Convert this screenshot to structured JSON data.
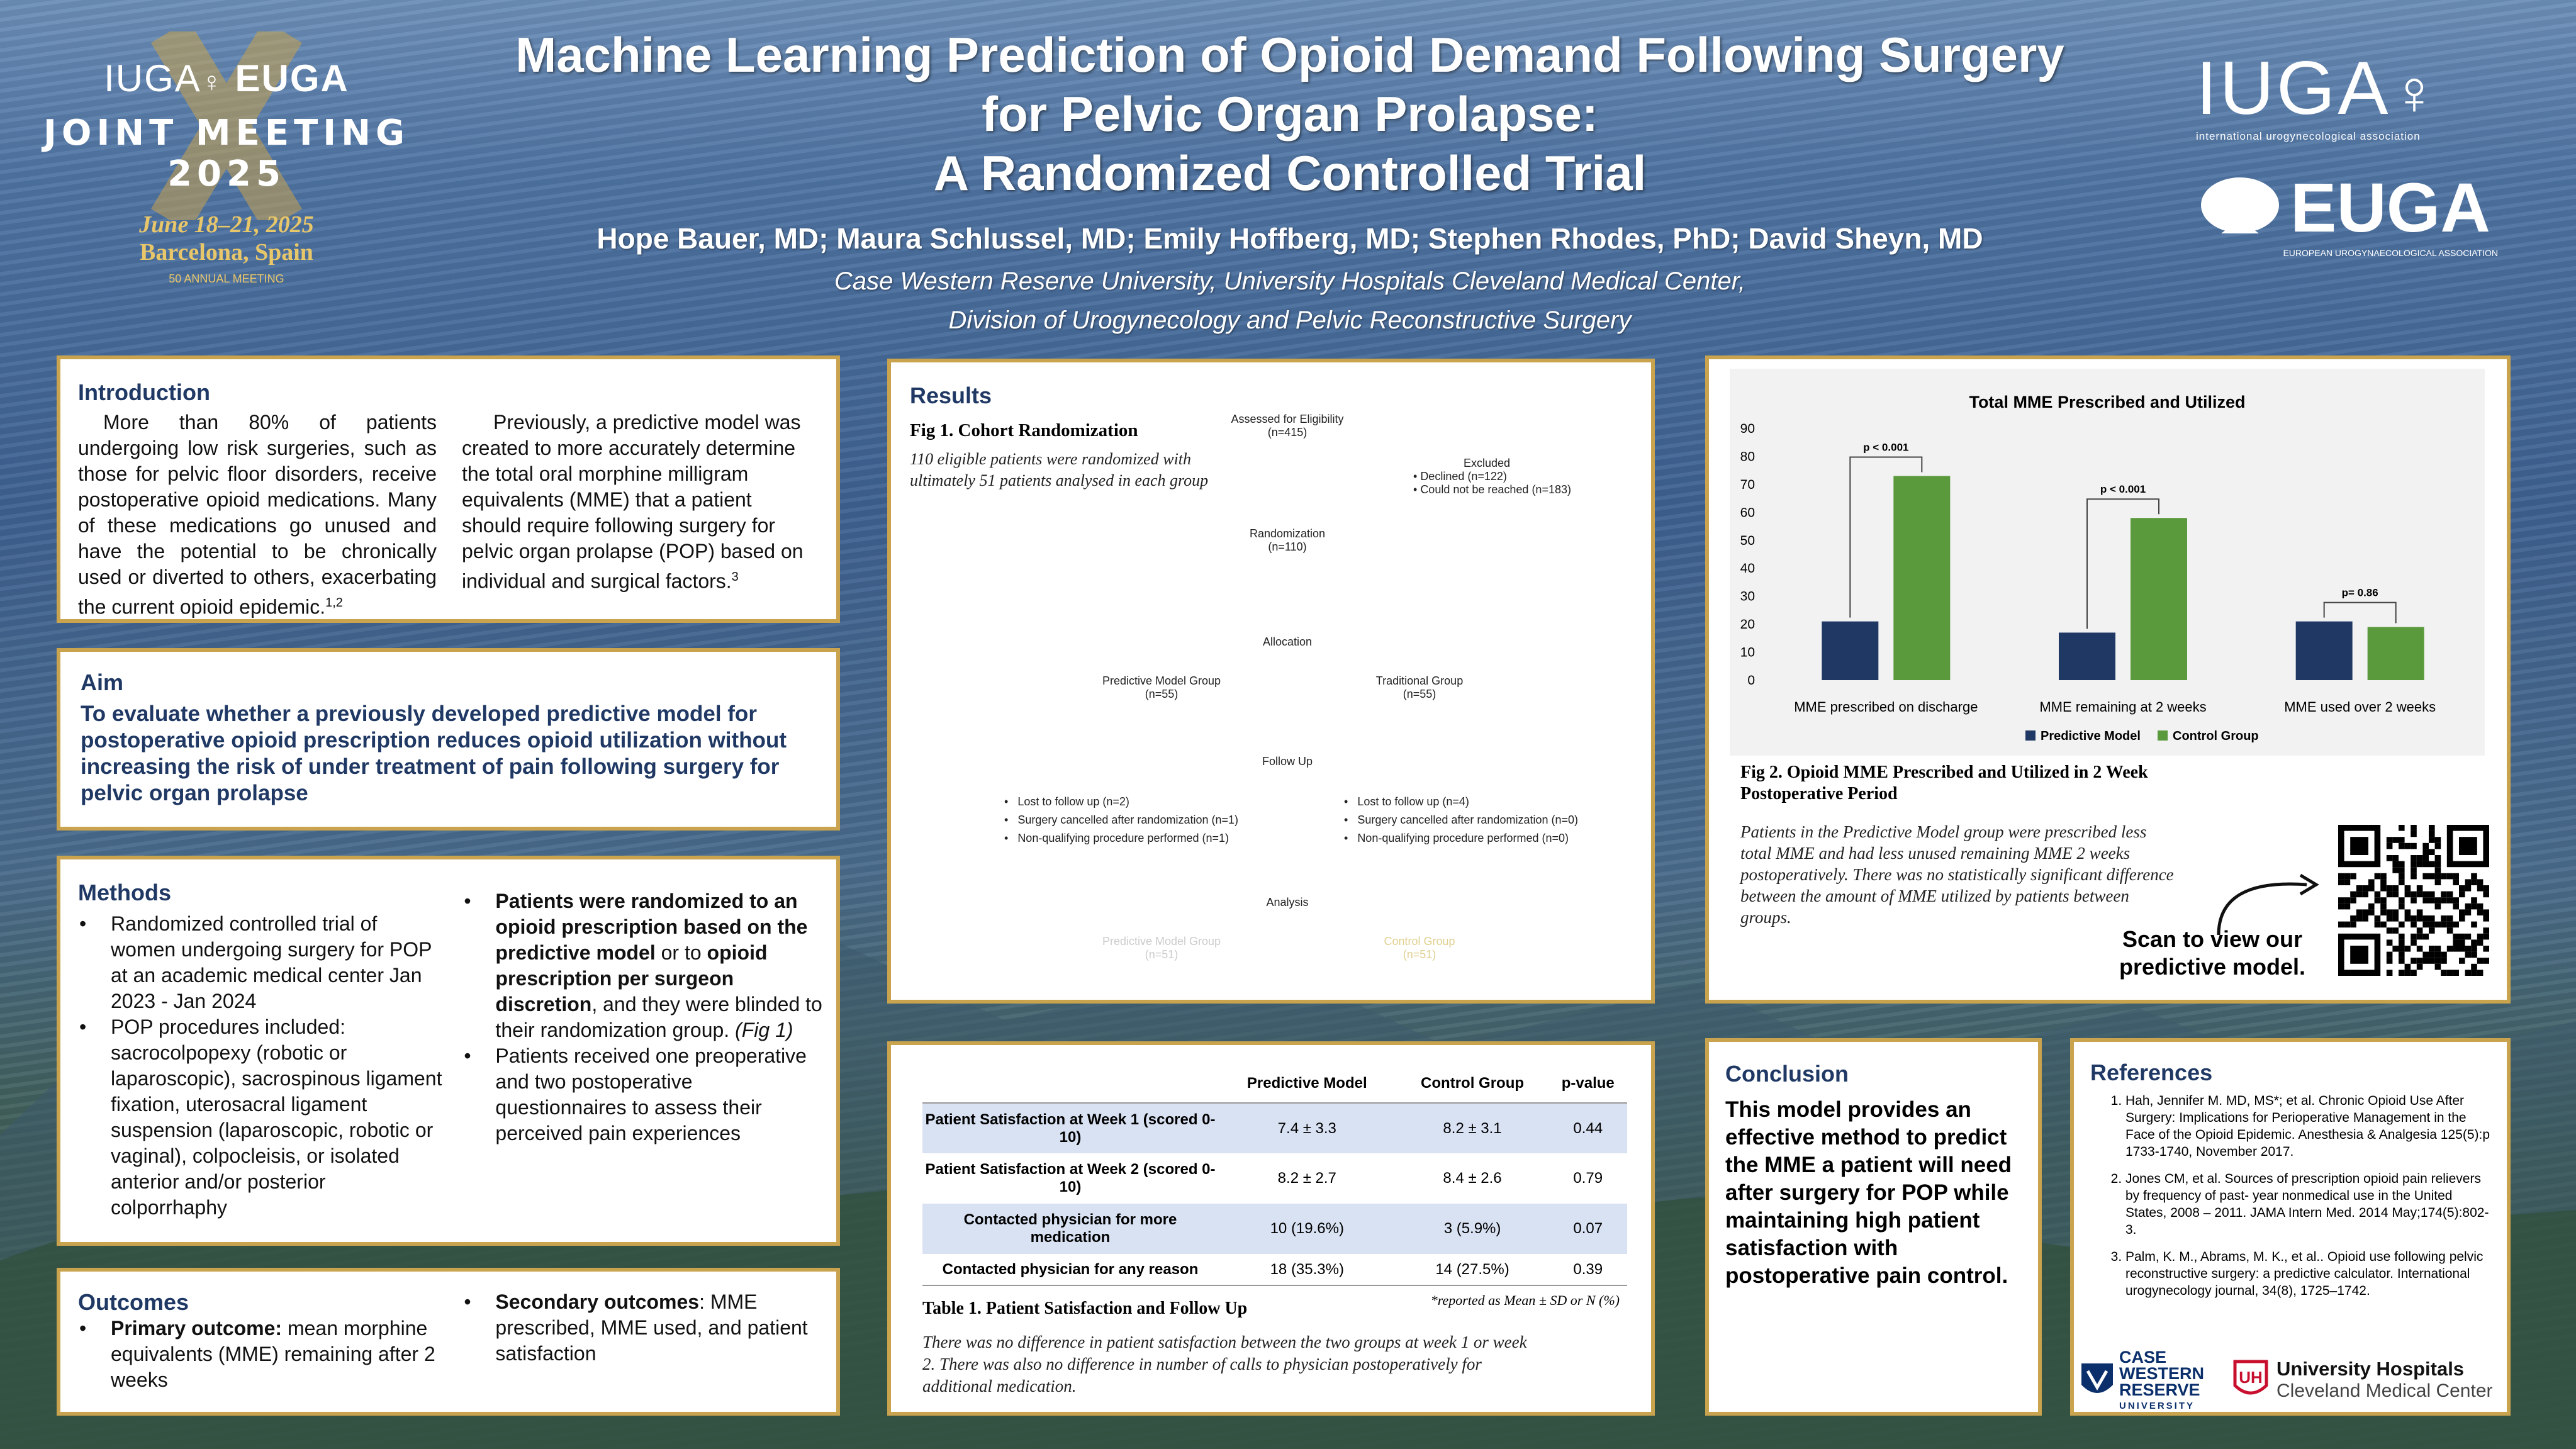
{
  "header": {
    "title_line1": "Machine Learning Prediction of Opioid Demand Following Surgery",
    "title_line2": "for Pelvic Organ Prolapse:",
    "title_line3": "A Randomized Controlled Trial",
    "authors": "Hope Bauer, MD; Maura Schlussel, MD; Emily Hoffberg, MD; Stephen Rhodes, PhD; David Sheyn, MD",
    "affil1": "Case Western Reserve University, University Hospitals Cleveland Medical Center,",
    "affil2": "Division of Urogynecology and Pelvic Reconstructive Surgery"
  },
  "logo_left": {
    "iuga": "IUGA",
    "euga": "EUGA",
    "joint": "JOINT MEETING",
    "year": "2025",
    "dates": "June 18–21, 2025",
    "city": "Barcelona, Spain",
    "anniv": "50 ANNUAL MEETING"
  },
  "logo_right": {
    "iuga": "IUGA",
    "iuga_sub": "international urogynecological association",
    "euga": "EUGA",
    "euga_sub": "EUROPEAN UROGYNAECOLOGICAL ASSOCIATION"
  },
  "introduction": {
    "heading": "Introduction",
    "col1": "More than 80% of patients undergoing low risk surgeries, such as those for pelvic floor disorders, receive postoperative opioid medications. Many of these medications go unused and have the potential to be chronically used or diverted to others, exacerbating the current opioid epidemic.",
    "col1_sup": "1,2",
    "col2": "Previously, a predictive model was created to more accurately determine the total oral morphine milligram equivalents (MME) that a patient should require following surgery for pelvic organ prolapse (POP) based on individual and surgical factors.",
    "col2_sup": "3"
  },
  "aim": {
    "heading": "Aim",
    "text": "To evaluate whether a previously developed predictive model for postoperative opioid prescription reduces opioid utilization without increasing the risk of under treatment of pain following surgery for pelvic organ prolapse"
  },
  "methods": {
    "heading": "Methods",
    "left": [
      "Randomized controlled trial of women undergoing surgery for POP at an academic medical center Jan 2023 - Jan 2024",
      "POP procedures included: sacrocolpopexy (robotic or laparoscopic), sacrospinous ligament fixation, uterosacral ligament suspension (laparoscopic, robotic or vaginal), colpocleisis, or isolated anterior and/or posterior colporrhaphy"
    ],
    "r1_b1": "Patients were randomized to an opioid prescription based on the predictive model",
    "r1_t1": " or to ",
    "r1_b2": "opioid prescription per surgeon discretion",
    "r1_t2": ", and they were blinded to their randomization group. ",
    "r1_i": "(Fig 1)",
    "r2": "Patients received one preoperative and two postoperative questionnaires to assess their perceived pain experiences"
  },
  "outcomes": {
    "heading": "Outcomes",
    "p_label": "Primary outcome:",
    "p_text": " mean morphine equivalents (MME) remaining after 2 weeks",
    "s_label": "Secondary outcomes",
    "s_text": ": MME prescribed, MME used, and patient satisfaction"
  },
  "results": {
    "heading": "Results",
    "fig1_title": "Fig 1. Cohort Randomization",
    "fig1_caption": "110 eligible patients were randomized with ultimately 51 patients analysed in each group",
    "flow": {
      "assessed": "Assessed for Eligibility",
      "assessed_n": "(n=415)",
      "excluded": "Excluded",
      "excl1": "Declined (n=122)",
      "excl2": "Could not be reached (n=183)",
      "randomization": "Randomization",
      "randomization_n": "(n=110)",
      "allocation": "Allocation",
      "pm_group": "Predictive Model Group",
      "pm_n": "(n=55)",
      "trad_group": "Traditional Group",
      "trad_n": "(n=55)",
      "followup": "Follow Up",
      "l1": "Lost to follow up (n=2)",
      "l2": "Surgery cancelled after randomization (n=1)",
      "l3": "Non-qualifying procedure performed (n=1)",
      "r1": "Lost to follow up (n=4)",
      "r2": "Surgery cancelled after randomization (n=0)",
      "r3": "Non-qualifying procedure performed (n=0)",
      "analysis": "Analysis",
      "a_pm": "Predictive Model Group",
      "a_pm_n": "(n=51)",
      "a_cg": "Control Group",
      "a_cg_n": "(n=51)"
    }
  },
  "table1": {
    "headers": [
      "",
      "Predictive Model",
      "Control Group",
      "p-value"
    ],
    "rows": [
      [
        "Patient Satisfaction at Week 1 (scored 0-10)",
        "7.4 ± 3.3",
        "8.2 ± 3.1",
        "0.44"
      ],
      [
        "Patient Satisfaction at Week 2 (scored 0-10)",
        "8.2 ± 2.7",
        "8.4 ± 2.6",
        "0.79"
      ],
      [
        "Contacted physician for more medication",
        "10 (19.6%)",
        "3 (5.9%)",
        "0.07"
      ],
      [
        "Contacted physician for any reason",
        "18 (35.3%)",
        "14 (27.5%)",
        "0.39"
      ]
    ],
    "footnote": "*reported as Mean ± SD or N (%)",
    "title": "Table 1. Patient Satisfaction and Follow Up",
    "caption": "There was no difference in patient satisfaction between the two groups at week 1 or week 2. There was also no difference in number of calls to physician postoperatively for additional medication."
  },
  "fig2": {
    "title": "Fig 2. Opioid MME Prescribed and Utilized in 2 Week Postoperative Period",
    "caption": "Patients in the Predictive Model group were prescribed less total MME and had less unused remaining MME 2 weeks postoperatively. There was no statistically significant difference between the amount of MME utilized by patients between groups.",
    "scan": "Scan to view our predictive model."
  },
  "chart_data": {
    "type": "bar",
    "title": "Total MME Prescribed and Utilized",
    "categories": [
      "MME prescribed on  discharge",
      "MME remaining at 2 weeks",
      "MME used over 2 weeks"
    ],
    "series": [
      {
        "name": "Predictive Model",
        "values": [
          21,
          17,
          21
        ],
        "color": "#1f3864"
      },
      {
        "name": "Control Group",
        "values": [
          73,
          58,
          19
        ],
        "color": "#5a9a3c"
      }
    ],
    "pvalues": [
      "p < 0.001",
      "p < 0.001",
      "p= 0.86"
    ],
    "yticks": [
      0,
      10,
      20,
      30,
      40,
      50,
      60,
      70,
      80,
      90
    ],
    "ylim": [
      0,
      90
    ],
    "legend": "bottom",
    "grid": false
  },
  "conclusion": {
    "heading": "Conclusion",
    "text": "This model provides an effective method to predict the MME a patient will need after surgery for POP while maintaining high patient satisfaction with postoperative pain control."
  },
  "references": {
    "heading": "References",
    "items": [
      "Hah, Jennifer M. MD, MS*; et al. Chronic Opioid Use After Surgery: Implications for Perioperative Management in the Face of the Opioid Epidemic. Anesthesia & Analgesia 125(5):p 1733-1740, November 2017.",
      "Jones CM, et al. Sources of prescription opioid pain relievers by frequency of past- year nonmedical use in the United States, 2008 – 2011. JAMA Intern Med. 2014 May;174(5):802-3.",
      "Palm, K. M., Abrams, M. K., et al.. Opioid use following pelvic reconstructive surgery: a predictive calculator. International urogynecology journal, 34(8), 1725–1742."
    ]
  },
  "sponsors": {
    "cwru1": "CASE",
    "cwru2": "WESTERN",
    "cwru3": "RESERVE",
    "cwru4": "UNIVERSITY",
    "uh1": "University Hospitals",
    "uh2": "Cleveland Medical Center"
  }
}
